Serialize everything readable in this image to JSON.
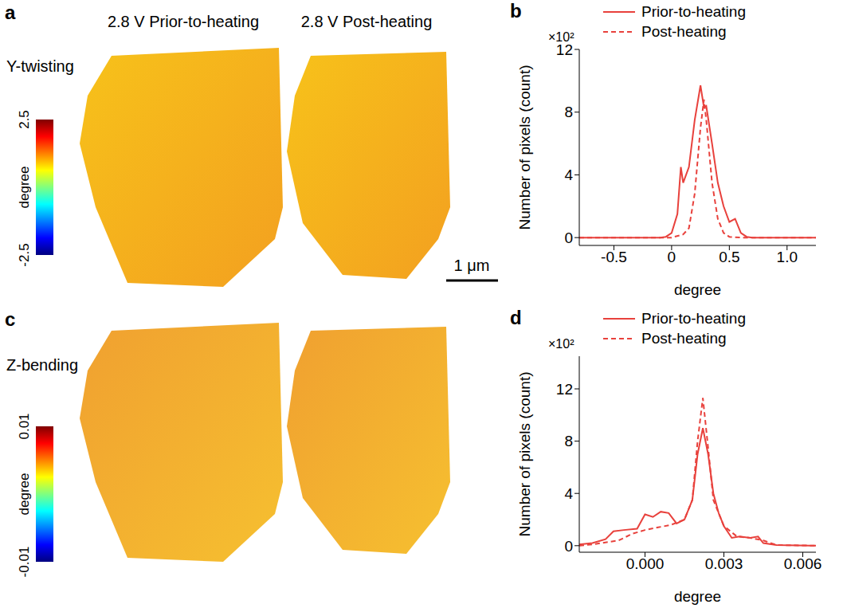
{
  "chart_data": [
    {
      "panel": "a",
      "type": "map",
      "row_label": "Y-twisting",
      "titles": [
        "2.8 V Prior-to-heating",
        "2.8 V Post-heating"
      ],
      "colorbar": {
        "label": "degree",
        "range": [
          -2.5,
          2.5
        ],
        "ticks": [
          -2.5,
          2.5
        ]
      },
      "scale_bar": "1 μm"
    },
    {
      "panel": "b",
      "type": "line",
      "ylabel": "Number of pixels (count)",
      "xlabel": "degree",
      "y_scale_label": "×10²",
      "xlim": [
        -0.8,
        1.25
      ],
      "xticks": [
        -0.5,
        0,
        0.5,
        {
          "value": 1,
          "label": "1.0"
        }
      ],
      "ylim": [
        -0.5,
        12
      ],
      "yticks": [
        0,
        4,
        8,
        12
      ],
      "legend": "top",
      "series": [
        {
          "name": "Prior-to-heating",
          "color": "#e8413c",
          "line_style": "solid",
          "x": [
            -0.8,
            -0.1,
            -0.05,
            0,
            0.05,
            0.08,
            0.1,
            0.15,
            0.2,
            0.25,
            0.28,
            0.3,
            0.35,
            0.4,
            0.45,
            0.5,
            0.55,
            0.6,
            0.65,
            0.7,
            1.25
          ],
          "values": [
            0,
            0,
            0.05,
            0.3,
            1.5,
            4.5,
            3.5,
            4.5,
            7.5,
            9.7,
            8.3,
            8.4,
            6,
            3.5,
            2.0,
            1.0,
            1.2,
            0.3,
            0.05,
            0,
            0
          ]
        },
        {
          "name": "Post-heating",
          "color": "#e8413c",
          "line_style": "dashed",
          "x": [
            -0.8,
            0,
            0.1,
            0.15,
            0.2,
            0.25,
            0.28,
            0.3,
            0.35,
            0.4,
            0.45,
            0.5,
            0.6,
            1.25
          ],
          "values": [
            0,
            0,
            0.2,
            0.6,
            2.8,
            7.0,
            8.8,
            7.5,
            3.5,
            1.2,
            0.3,
            0.05,
            0,
            0
          ]
        }
      ]
    },
    {
      "panel": "c",
      "type": "map",
      "row_label": "Z-bending",
      "colorbar": {
        "label": "degree",
        "range": [
          -0.01,
          0.01
        ],
        "ticks": [
          -0.01,
          0.01
        ]
      }
    },
    {
      "panel": "d",
      "type": "line",
      "ylabel": "Number of pixels (count)",
      "xlabel": "degree",
      "y_scale_label": "×10²",
      "xlim": [
        -0.0025,
        0.0065
      ],
      "xticks": [
        {
          "value": 0,
          "label": "0.000"
        },
        {
          "value": 0.003,
          "label": "0.003"
        },
        {
          "value": 0.006,
          "label": "0.006"
        }
      ],
      "ylim": [
        -0.5,
        14.5
      ],
      "yticks": [
        0,
        4,
        8,
        12
      ],
      "legend": "top",
      "series": [
        {
          "name": "Prior-to-heating",
          "color": "#e8413c",
          "line_style": "solid",
          "x": [
            -0.0025,
            -0.002,
            -0.0015,
            -0.0012,
            -0.0008,
            -0.0003,
            0.0,
            0.0003,
            0.0006,
            0.0009,
            0.0012,
            0.0015,
            0.0018,
            0.002,
            0.0022,
            0.0024,
            0.0026,
            0.0028,
            0.003,
            0.0033,
            0.0036,
            0.004,
            0.0043,
            0.0045,
            0.005,
            0.0065
          ],
          "values": [
            0.1,
            0.2,
            0.5,
            1.1,
            1.2,
            1.3,
            2.4,
            2.2,
            2.6,
            2.5,
            1.7,
            2.0,
            3.5,
            7.0,
            9.0,
            7.0,
            4.0,
            2.5,
            1.5,
            0.6,
            0.7,
            0.6,
            0.7,
            0.2,
            0.05,
            0
          ]
        },
        {
          "name": "Post-heating",
          "color": "#e8413c",
          "line_style": "dashed",
          "x": [
            -0.0025,
            -0.002,
            -0.001,
            -0.0005,
            0,
            0.0005,
            0.001,
            0.0015,
            0.0018,
            0.002,
            0.0022,
            0.0024,
            0.0026,
            0.003,
            0.0035,
            0.004,
            0.0045,
            0.005,
            0.0065
          ],
          "values": [
            0,
            0.1,
            0.4,
            0.9,
            1.2,
            1.4,
            1.6,
            2.0,
            3.5,
            8.0,
            11.3,
            7.5,
            3.5,
            1.5,
            0.7,
            0.6,
            0.4,
            0.05,
            0
          ]
        }
      ]
    }
  ]
}
